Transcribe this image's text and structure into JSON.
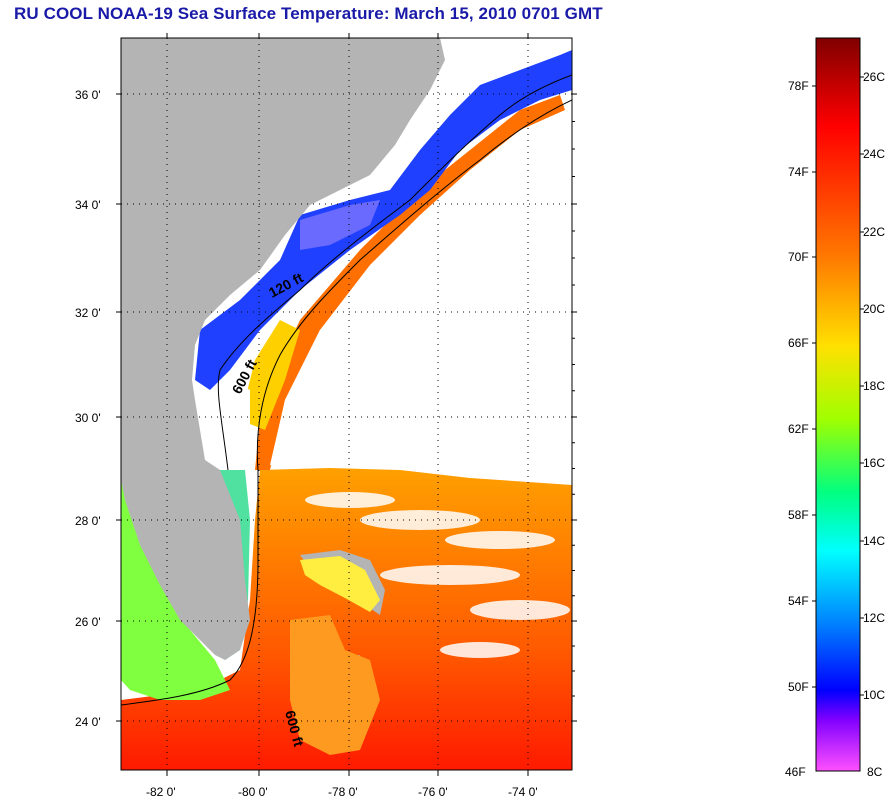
{
  "title": "RU COOL  NOAA-19  Sea Surface Temperature:  March 15, 2010 0701 GMT",
  "map": {
    "lat_labels": [
      "36 0'",
      "34 0'",
      "32 0'",
      "30 0'",
      "28 0'",
      "26 0'",
      "24 0'"
    ],
    "lon_labels": [
      "-82 0'",
      "-80 0'",
      "-78 0'",
      "-76 0'",
      "-74 0'"
    ],
    "contour_labels": [
      "120 ft",
      "600 ft",
      "600 ft"
    ],
    "land_color": "#b4b4b4",
    "cloud_color": "#ffffff"
  },
  "colorbar": {
    "f_labels": [
      "78F",
      "74F",
      "70F",
      "66F",
      "62F",
      "58F",
      "54F",
      "50F",
      "46F"
    ],
    "c_labels": [
      "26C",
      "24C",
      "22C",
      "20C",
      "18C",
      "16C",
      "14C",
      "12C",
      "10C",
      "8C"
    ],
    "colors_top_to_bottom": [
      "#800000",
      "#ff0000",
      "#ff8000",
      "#ffff00",
      "#80ff00",
      "#00ff80",
      "#00ffff",
      "#0080ff",
      "#0000ff",
      "#8000ff",
      "#ff40ff"
    ]
  }
}
